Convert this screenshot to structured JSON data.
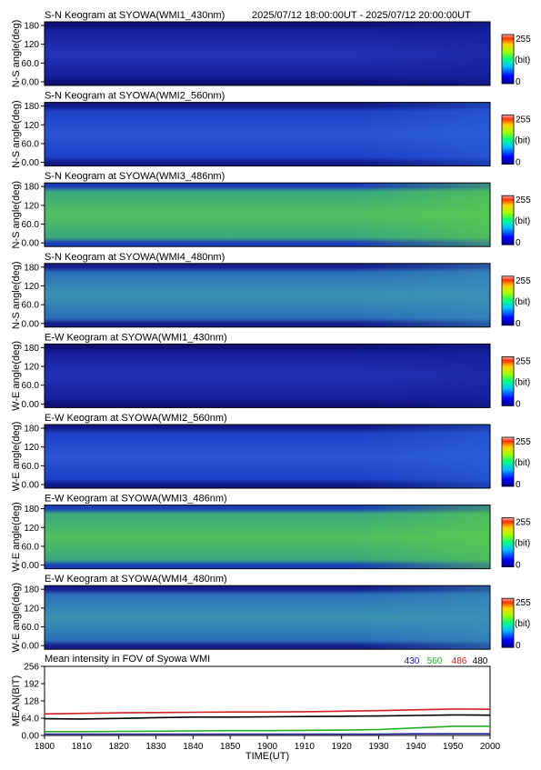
{
  "header": {
    "time_range": "2025/07/12 18:00:00UT - 2025/07/12 20:00:00UT"
  },
  "colorbar": {
    "max_label": "255",
    "unit_label": "(bit)",
    "min_label": "0"
  },
  "keogram_yticks": [
    "180",
    "120",
    "60.0",
    "0.00"
  ],
  "panels": [
    {
      "title": "S-N Keogram at SYOWA(WMI1_430nm)",
      "ylabel": "N-S angle(deg)",
      "base": "#16209e",
      "edge": "#0e1275",
      "light": "#2233b6",
      "late": "#16209e"
    },
    {
      "title": "S-N Keogram at SYOWA(WMI2_560nm)",
      "ylabel": "N-S angle(deg)",
      "base": "#1d3fc6",
      "edge": "#101a86",
      "light": "#2a55d4",
      "late": "#2c64dc"
    },
    {
      "title": "S-N Keogram at SYOWA(WMI3_486nm)",
      "ylabel": "N-S angle(deg)",
      "base": "#3aa87e",
      "edge": "#1b3fb8",
      "light": "#52c060",
      "late": "#5ccc48"
    },
    {
      "title": "S-N Keogram at SYOWA(WMI4_480nm)",
      "ylabel": "N-S angle(deg)",
      "base": "#2a6fba",
      "edge": "#141e8c",
      "light": "#3a93b0",
      "late": "#3c8fb8"
    },
    {
      "title": "E-W Keogram at SYOWA(WMI1_430nm)",
      "ylabel": "W-E angle(deg)",
      "base": "#16209e",
      "edge": "#0e1275",
      "light": "#2233b6",
      "late": "#16209e"
    },
    {
      "title": "E-W Keogram at SYOWA(WMI2_560nm)",
      "ylabel": "W-E angle(deg)",
      "base": "#1d3fc6",
      "edge": "#101a86",
      "light": "#2a55d4",
      "late": "#2c64dc"
    },
    {
      "title": "E-W Keogram at SYOWA(WMI3_486nm)",
      "ylabel": "W-E angle(deg)",
      "base": "#3aa87e",
      "edge": "#1b3fb8",
      "light": "#52c060",
      "late": "#5ccc48"
    },
    {
      "title": "E-W Keogram at SYOWA(WMI4_480nm)",
      "ylabel": "W-E angle(deg)",
      "base": "#2a6fba",
      "edge": "#141e8c",
      "light": "#3a93b0",
      "late": "#3c8fb8"
    }
  ],
  "chart_data": {
    "type": "line",
    "title": "Mean intensity in FOV of Syowa WMI",
    "xlabel": "TIME(UT)",
    "ylabel": "MEAN(BIT)",
    "xlim": [
      1800,
      2000
    ],
    "ylim": [
      0,
      256
    ],
    "xticks": [
      "1800",
      "1810",
      "1820",
      "1830",
      "1840",
      "1850",
      "1900",
      "1910",
      "1920",
      "1930",
      "1940",
      "1950",
      "2000"
    ],
    "yticks": [
      "0.00",
      "64.0",
      "128",
      "192",
      "256"
    ],
    "x": [
      0,
      10,
      20,
      30,
      40,
      50,
      60,
      70,
      80,
      90,
      100,
      110,
      120
    ],
    "series": [
      {
        "name": "430",
        "color": "#2020a0",
        "values": [
          5,
          5,
          5,
          5,
          5,
          5,
          5,
          5,
          5,
          5,
          6,
          6,
          6
        ]
      },
      {
        "name": "560",
        "color": "#20b020",
        "values": [
          14,
          14,
          15,
          16,
          17,
          18,
          18,
          19,
          20,
          22,
          28,
          34,
          34
        ]
      },
      {
        "name": "486",
        "color": "#d02020",
        "values": [
          80,
          82,
          84,
          85,
          86,
          87,
          87,
          88,
          90,
          92,
          95,
          98,
          97
        ]
      },
      {
        "name": "480",
        "color": "#000000",
        "values": [
          62,
          61,
          63,
          66,
          68,
          68,
          69,
          70,
          71,
          72,
          74,
          76,
          75
        ]
      }
    ]
  }
}
